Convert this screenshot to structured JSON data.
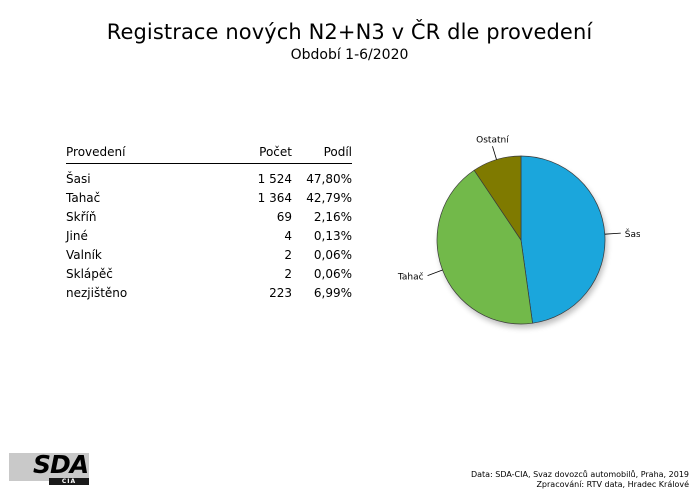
{
  "header": {
    "title": "Registrace nových N2+N3 v ČR dle provedení",
    "subtitle": "Období 1-6/2020"
  },
  "table": {
    "headers": [
      "Provedení",
      "Počet",
      "Podíl"
    ],
    "rows": [
      {
        "label": "Šasi",
        "count": "1 524",
        "share": "47,80%"
      },
      {
        "label": "Tahač",
        "count": "1 364",
        "share": "42,79%"
      },
      {
        "label": "Skříň",
        "count": "69",
        "share": "2,16%"
      },
      {
        "label": "Jiné",
        "count": "4",
        "share": "0,13%"
      },
      {
        "label": "Valník",
        "count": "2",
        "share": "0,06%"
      },
      {
        "label": "Sklápěč",
        "count": "2",
        "share": "0,06%"
      },
      {
        "label": "nezjištěno",
        "count": "223",
        "share": "6,99%"
      }
    ]
  },
  "chart_data": {
    "type": "pie",
    "categories": [
      "Šasi",
      "Tahač",
      "Ostatní"
    ],
    "values": [
      47.8,
      42.79,
      9.41
    ],
    "colors": [
      "#1ba6dc",
      "#72b94a",
      "#7f7a00"
    ],
    "slice_labels": [
      "Šasi",
      "Tahač",
      "Ostatní"
    ]
  },
  "logo": {
    "text": "SDA",
    "sub": "CIA"
  },
  "footer": {
    "line1": "Data: SDA-CIA, Svaz dovozců automobilů, Praha, 2019",
    "line2": "Zpracování: RTV data, Hradec Králové"
  }
}
